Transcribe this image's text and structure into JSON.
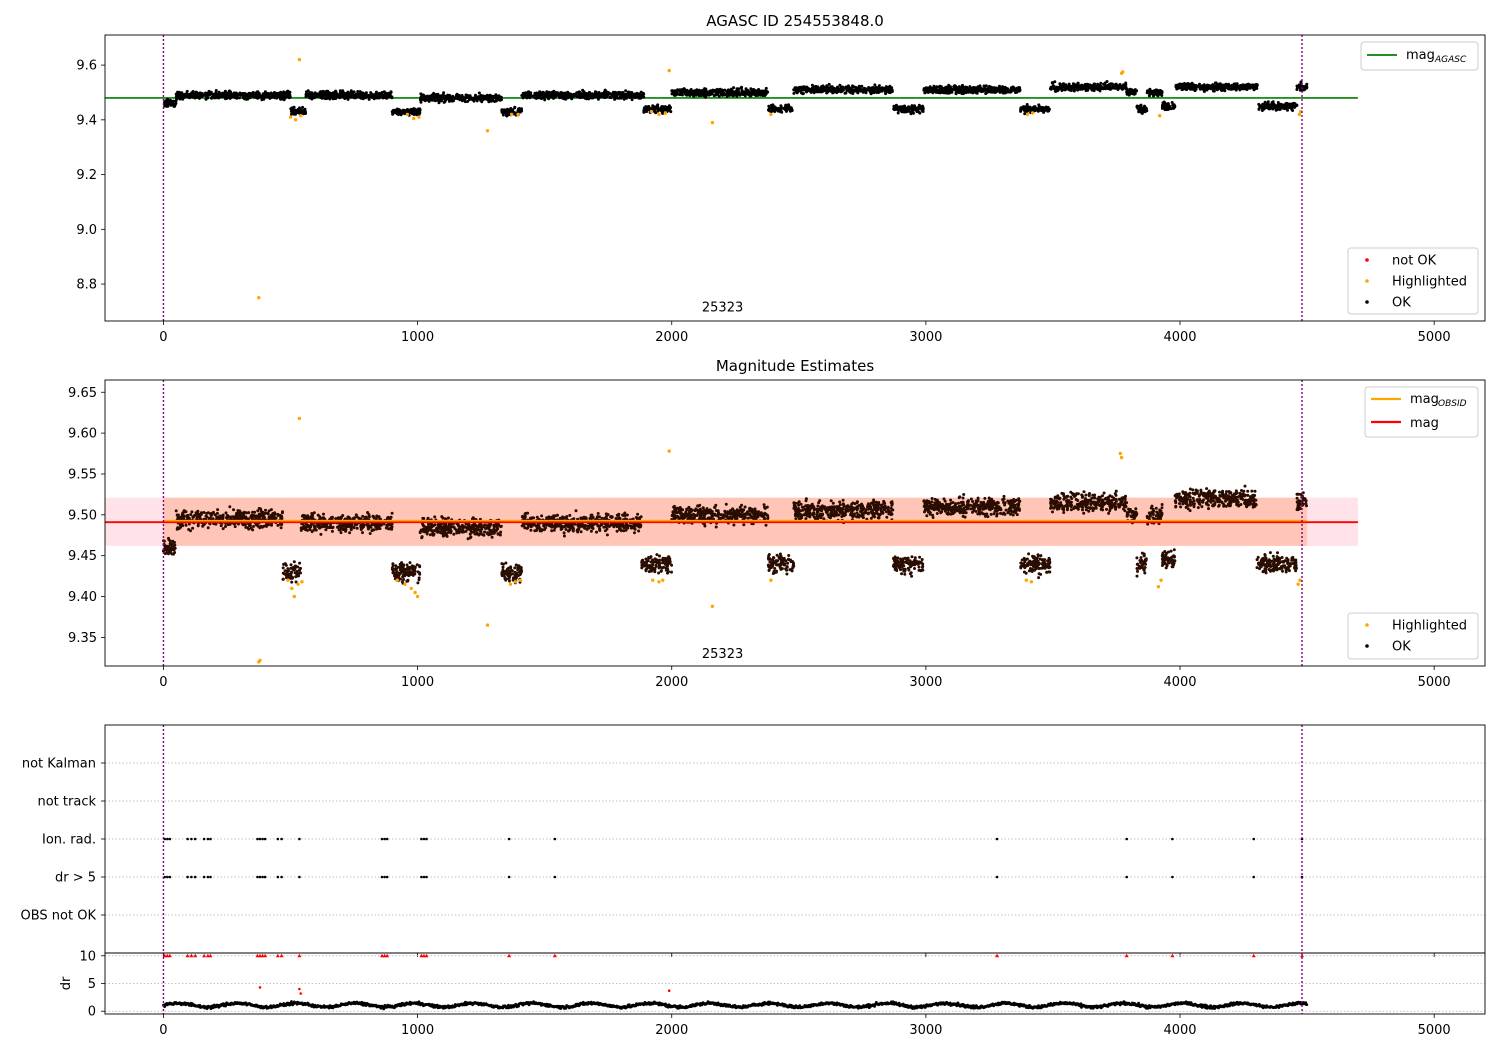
{
  "colors": {
    "ok": "#000000",
    "highlighted": "#ffa500",
    "not_ok": "#ff0000",
    "agasc_line": "#008000",
    "obsid_line": "#ffa500",
    "mag_line": "#ff0000",
    "band_orange": "#ffa07a",
    "band_pink": "#ffc0cb",
    "vline": "#800080"
  },
  "chart_data": [
    {
      "type": "scatter",
      "title": "AGASC ID 254553848.0",
      "xlim": [
        -230,
        5200
      ],
      "ylim": [
        8.665,
        9.71
      ],
      "xticks": [
        0,
        1000,
        2000,
        3000,
        4000,
        5000
      ],
      "yticks": [
        8.8,
        9.0,
        9.2,
        9.4,
        9.6
      ],
      "ytick_labels": [
        "8.8",
        "9.0",
        "9.2",
        "9.4",
        "9.6"
      ],
      "obsid_label": "25323",
      "obsid_label_pos": [
        2200,
        8.7
      ],
      "vlines": [
        0,
        4480
      ],
      "mag_agasc": 9.48,
      "mag_agasc_extent": [
        -230,
        4700
      ],
      "legend_lines": [
        {
          "label": "mag",
          "sub": "AGASC",
          "color": "#008000"
        }
      ],
      "legend_markers": [
        {
          "label": "not OK",
          "color": "#ff0000"
        },
        {
          "label": "Highlighted",
          "color": "#ffa500"
        },
        {
          "label": "OK",
          "color": "#000000"
        }
      ],
      "series": [
        {
          "name": "OK",
          "segments": [
            [
              0,
              50,
              9.46
            ],
            [
              50,
              500,
              9.49
            ],
            [
              500,
              560,
              9.43
            ],
            [
              560,
              900,
              9.49
            ],
            [
              900,
              1010,
              9.43
            ],
            [
              1010,
              1330,
              9.48
            ],
            [
              1330,
              1410,
              9.43
            ],
            [
              1410,
              1890,
              9.49
            ],
            [
              1890,
              2000,
              9.44
            ],
            [
              2000,
              2380,
              9.5
            ],
            [
              2380,
              2480,
              9.44
            ],
            [
              2480,
              2870,
              9.51
            ],
            [
              2870,
              2990,
              9.44
            ],
            [
              2990,
              3370,
              9.51
            ],
            [
              3370,
              3490,
              9.44
            ],
            [
              3490,
              3790,
              9.52
            ],
            [
              3790,
              3830,
              9.5
            ],
            [
              3830,
              3870,
              9.44
            ],
            [
              3870,
              3930,
              9.5
            ],
            [
              3930,
              3980,
              9.45
            ],
            [
              3980,
              4310,
              9.52
            ],
            [
              4310,
              4460,
              9.45
            ],
            [
              4460,
              4500,
              9.52
            ]
          ]
        },
        {
          "name": "Highlighted",
          "points": [
            [
              375,
              8.75
            ],
            [
              535,
              9.62
            ],
            [
              1275,
              9.36
            ],
            [
              2160,
              9.39
            ],
            [
              1990,
              9.58
            ],
            [
              500,
              9.41
            ],
            [
              520,
              9.4
            ],
            [
              540,
              9.415
            ],
            [
              960,
              9.42
            ],
            [
              985,
              9.405
            ],
            [
              1005,
              9.41
            ],
            [
              1370,
              9.42
            ],
            [
              1395,
              9.42
            ],
            [
              1920,
              9.43
            ],
            [
              1950,
              9.42
            ],
            [
              1975,
              9.425
            ],
            [
              2390,
              9.42
            ],
            [
              3400,
              9.42
            ],
            [
              3420,
              9.425
            ],
            [
              3770,
              9.57
            ],
            [
              3775,
              9.575
            ],
            [
              3920,
              9.415
            ],
            [
              4470,
              9.42
            ],
            [
              4475,
              9.43
            ]
          ]
        }
      ]
    },
    {
      "type": "scatter",
      "title": "Magnitude Estimates",
      "xlim": [
        -230,
        5200
      ],
      "ylim": [
        9.315,
        9.665
      ],
      "xticks": [
        0,
        1000,
        2000,
        3000,
        4000,
        5000
      ],
      "yticks": [
        9.35,
        9.4,
        9.45,
        9.5,
        9.55,
        9.6,
        9.65
      ],
      "ytick_labels": [
        "9.35",
        "9.40",
        "9.45",
        "9.50",
        "9.55",
        "9.60",
        "9.65"
      ],
      "obsid_label": "25323",
      "obsid_label_pos": [
        2200,
        9.325
      ],
      "vlines": [
        0,
        4480
      ],
      "mag": 9.491,
      "mag_band": [
        9.462,
        9.521
      ],
      "mag_extent": [
        -230,
        4700
      ],
      "mag_obsid": 9.491,
      "mag_obsid_band": [
        9.462,
        9.521
      ],
      "mag_obsid_extent": [
        0,
        4500
      ],
      "legend_lines": [
        {
          "label": "mag",
          "sub": "OBSID",
          "color": "#ffa500"
        },
        {
          "label": "mag",
          "sub": "",
          "color": "#ff0000"
        }
      ],
      "legend_markers": [
        {
          "label": "Highlighted",
          "color": "#ffa500"
        },
        {
          "label": "OK",
          "color": "#000000"
        }
      ],
      "series": [
        {
          "name": "OK",
          "segments": [
            [
              0,
              50,
              9.46
            ],
            [
              50,
              470,
              9.495
            ],
            [
              470,
              540,
              9.43
            ],
            [
              540,
              900,
              9.49
            ],
            [
              900,
              1010,
              9.43
            ],
            [
              1010,
              1330,
              9.485
            ],
            [
              1330,
              1410,
              9.43
            ],
            [
              1410,
              1880,
              9.49
            ],
            [
              1880,
              2000,
              9.44
            ],
            [
              2000,
              2380,
              9.5
            ],
            [
              2380,
              2480,
              9.44
            ],
            [
              2480,
              2870,
              9.505
            ],
            [
              2870,
              2990,
              9.44
            ],
            [
              2990,
              3370,
              9.51
            ],
            [
              3370,
              3490,
              9.44
            ],
            [
              3490,
              3790,
              9.515
            ],
            [
              3790,
              3830,
              9.5
            ],
            [
              3830,
              3870,
              9.44
            ],
            [
              3870,
              3930,
              9.5
            ],
            [
              3930,
              3980,
              9.445
            ],
            [
              3980,
              4300,
              9.52
            ],
            [
              4300,
              4460,
              9.44
            ],
            [
              4460,
              4500,
              9.515
            ]
          ]
        },
        {
          "name": "Highlighted",
          "points": [
            [
              375,
              9.32
            ],
            [
              380,
              9.322
            ],
            [
              535,
              9.618
            ],
            [
              1275,
              9.365
            ],
            [
              2160,
              9.388
            ],
            [
              1990,
              9.578
            ],
            [
              490,
              9.42
            ],
            [
              505,
              9.41
            ],
            [
              515,
              9.4
            ],
            [
              530,
              9.415
            ],
            [
              545,
              9.418
            ],
            [
              920,
              9.42
            ],
            [
              950,
              9.415
            ],
            [
              975,
              9.41
            ],
            [
              990,
              9.405
            ],
            [
              1000,
              9.4
            ],
            [
              1365,
              9.415
            ],
            [
              1385,
              9.418
            ],
            [
              1405,
              9.42
            ],
            [
              1925,
              9.42
            ],
            [
              1950,
              9.418
            ],
            [
              1965,
              9.42
            ],
            [
              2390,
              9.42
            ],
            [
              3395,
              9.42
            ],
            [
              3415,
              9.418
            ],
            [
              3765,
              9.575
            ],
            [
              3770,
              9.57
            ],
            [
              3915,
              9.412
            ],
            [
              3925,
              9.42
            ],
            [
              4465,
              9.415
            ],
            [
              4472,
              9.42
            ]
          ]
        }
      ]
    },
    {
      "type": "scatter",
      "title": "",
      "xlim": [
        -230,
        5200
      ],
      "ylim": [
        0,
        6
      ],
      "xticks": [],
      "ytick_labels": [
        "not Kalman",
        "not track",
        "Ion. rad.",
        "dr > 5",
        "OBS not OK"
      ],
      "ytick_values": [
        5,
        4,
        3,
        2,
        1
      ],
      "vlines": [
        0,
        4480
      ],
      "series": [
        {
          "name": "Ion. rad.",
          "x": [
            5,
            15,
            25,
            95,
            110,
            125,
            160,
            175,
            185,
            370,
            380,
            390,
            400,
            450,
            465,
            535,
            860,
            870,
            880,
            1015,
            1025,
            1035,
            1360,
            1540,
            3280,
            3790,
            3970,
            4290,
            4480
          ]
        },
        {
          "name": "dr > 5",
          "x": [
            5,
            15,
            25,
            95,
            110,
            125,
            160,
            175,
            185,
            370,
            380,
            390,
            400,
            450,
            465,
            535,
            860,
            870,
            880,
            1015,
            1025,
            1035,
            1360,
            1540,
            3280,
            3790,
            3970,
            4290,
            4480
          ]
        }
      ]
    },
    {
      "type": "scatter",
      "title": "",
      "xlim": [
        -230,
        5200
      ],
      "ylim": [
        -0.5,
        10.5
      ],
      "xticks": [
        0,
        1000,
        2000,
        3000,
        4000,
        5000
      ],
      "yticks": [
        0,
        5,
        10
      ],
      "ytick_labels": [
        "0",
        "5",
        "10"
      ],
      "ylabel": "dr",
      "vlines": [
        0,
        4480
      ],
      "series": [
        {
          "name": "dr",
          "baseline": 1.1,
          "x_range": [
            0,
            4500
          ]
        },
        {
          "name": "dr > 5",
          "x": [
            5,
            15,
            25,
            95,
            110,
            125,
            160,
            175,
            185,
            370,
            380,
            390,
            400,
            450,
            465,
            535,
            860,
            870,
            880,
            1015,
            1025,
            1035,
            1360,
            1540,
            3280,
            3790,
            3970,
            4290,
            4480
          ],
          "y": 10
        },
        {
          "name": "dr outliers",
          "points": [
            [
              380,
              4.3
            ],
            [
              535,
              4.0
            ],
            [
              540,
              3.2
            ],
            [
              1990,
              3.7
            ]
          ]
        }
      ]
    }
  ]
}
